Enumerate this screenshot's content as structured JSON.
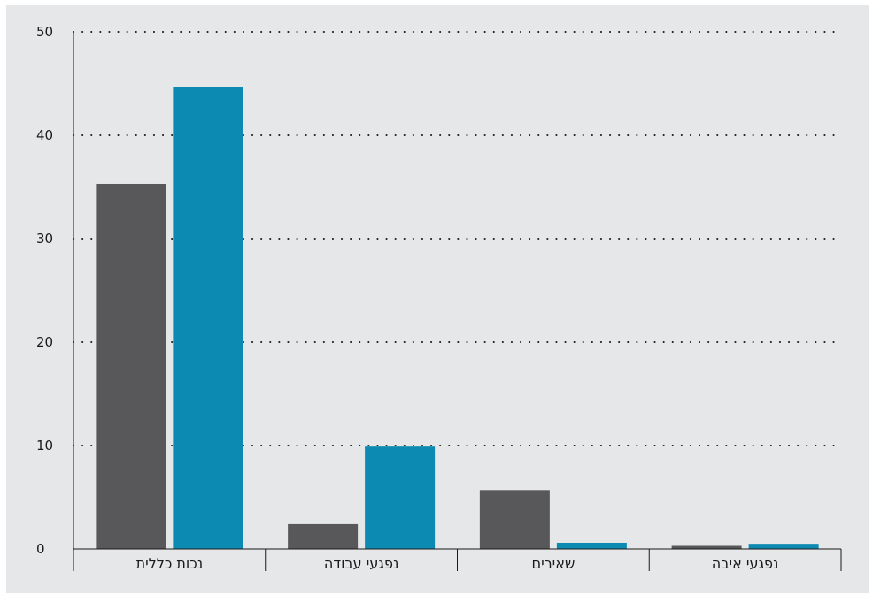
{
  "chart_data": {
    "type": "bar",
    "categories": [
      "נכות כללית",
      "נפגעי עבודה",
      "שאירים",
      "נפגעי איבה"
    ],
    "series": [
      {
        "values": [
          35.3,
          2.4,
          5.7,
          0.3
        ],
        "color": "#58585a"
      },
      {
        "values": [
          44.7,
          9.9,
          0.6,
          0.5
        ],
        "color": "#0d8ab2"
      }
    ],
    "y_ticks": [
      "0",
      "10",
      "20",
      "30",
      "40",
      "50"
    ],
    "ylim": [
      0,
      50
    ],
    "grid": "dotted-horizontal",
    "background": "#e6e7e8"
  }
}
